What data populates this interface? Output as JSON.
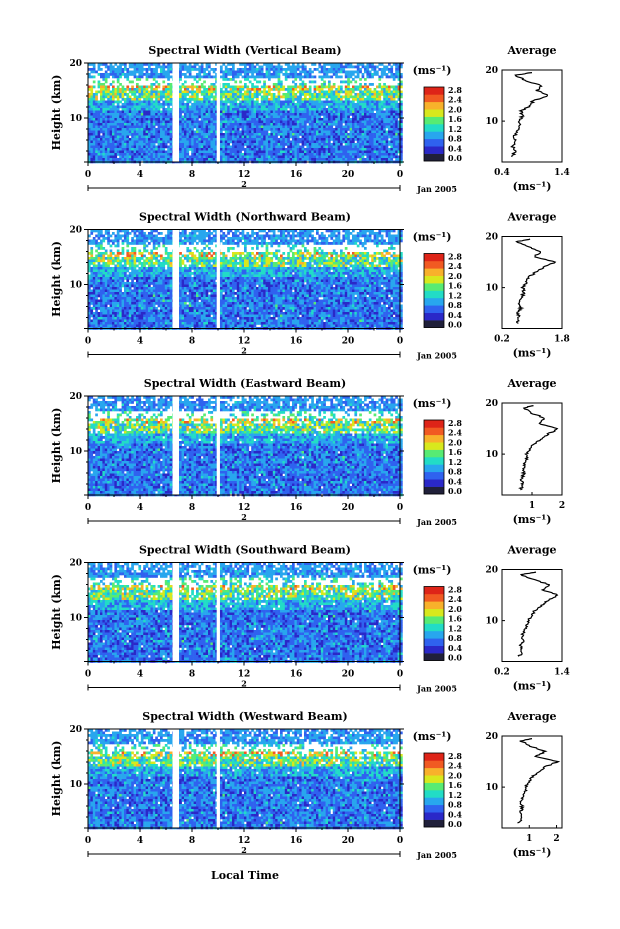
{
  "figure": {
    "xlabel_bottom": "Local Time",
    "ylabel": "Height (km)",
    "date_label": "Jan 2005",
    "day_label": "2",
    "unit_label": "(ms⁻¹)",
    "average_title": "Average",
    "average_xlabel": "(ms⁻¹)"
  },
  "colorbar": {
    "ticks": [
      "2.8",
      "2.4",
      "2.0",
      "1.6",
      "1.2",
      "0.8",
      "0.4",
      "0.0"
    ],
    "colors": [
      "#20203a",
      "#2a28c8",
      "#2f62ef",
      "#28a6ee",
      "#22dcc6",
      "#57eb73",
      "#d8e81d",
      "#f8b12b",
      "#f15a22",
      "#de2418"
    ]
  },
  "chart_data": [
    {
      "type": "heatmap",
      "title": "Spectral Width (Vertical Beam)",
      "xlabel": "Local Time",
      "ylabel": "Height (km)",
      "xlim": [
        0,
        24
      ],
      "ylim": [
        2,
        20
      ],
      "x_ticks": [
        "0",
        "4",
        "8",
        "12",
        "16",
        "20",
        "0"
      ],
      "y_ticks": [
        "10",
        "20"
      ],
      "data_gaps_hours": [
        [
          6.5,
          7.0
        ],
        [
          9.9,
          10.15
        ]
      ],
      "colorbar_range": [
        0.0,
        2.8
      ],
      "average_profile": {
        "xlim": [
          0.4,
          1.4
        ],
        "x_ticks": [
          "0.4",
          "1.4"
        ],
        "y_ticks": [
          "10",
          "20"
        ],
        "heights": [
          3,
          4,
          5,
          6,
          7,
          8,
          9,
          10,
          11,
          12,
          13,
          14,
          15,
          16,
          17,
          18,
          19,
          19.5
        ],
        "values": [
          0.56,
          0.62,
          0.58,
          0.64,
          0.6,
          0.66,
          0.7,
          0.68,
          0.74,
          0.72,
          0.86,
          0.92,
          1.18,
          0.98,
          1.05,
          0.78,
          0.62,
          0.9
        ]
      }
    },
    {
      "type": "heatmap",
      "title": "Spectral Width (Northward Beam)",
      "xlabel": "Local Time",
      "ylabel": "Height (km)",
      "xlim": [
        0,
        24
      ],
      "ylim": [
        2,
        20
      ],
      "x_ticks": [
        "0",
        "4",
        "8",
        "12",
        "16",
        "20",
        "0"
      ],
      "y_ticks": [
        "10",
        "20"
      ],
      "data_gaps_hours": [
        [
          6.5,
          7.0
        ],
        [
          9.9,
          10.15
        ]
      ],
      "colorbar_range": [
        0.0,
        2.8
      ],
      "average_profile": {
        "xlim": [
          0.2,
          1.8
        ],
        "x_ticks": [
          "0.2",
          "1.8"
        ],
        "y_ticks": [
          "10",
          "20"
        ],
        "heights": [
          3,
          4,
          5,
          6,
          7,
          8,
          9,
          10,
          11,
          12,
          13,
          14,
          15,
          16,
          17,
          18,
          19,
          19.5
        ],
        "values": [
          0.6,
          0.66,
          0.62,
          0.7,
          0.66,
          0.72,
          0.78,
          0.76,
          0.84,
          0.9,
          1.1,
          1.3,
          1.62,
          1.05,
          1.25,
          0.9,
          0.6,
          0.95
        ]
      }
    },
    {
      "type": "heatmap",
      "title": "Spectral Width (Eastward Beam)",
      "xlabel": "Local Time",
      "ylabel": "Height (km)",
      "xlim": [
        0,
        24
      ],
      "ylim": [
        2,
        20
      ],
      "x_ticks": [
        "0",
        "4",
        "8",
        "12",
        "16",
        "20",
        "0"
      ],
      "y_ticks": [
        "10",
        "20"
      ],
      "data_gaps_hours": [
        [
          6.5,
          7.0
        ],
        [
          9.9,
          10.15
        ]
      ],
      "colorbar_range": [
        0.0,
        2.8
      ],
      "average_profile": {
        "xlim": [
          0,
          2
        ],
        "x_ticks": [
          "1",
          "2"
        ],
        "y_ticks": [
          "10",
          "20"
        ],
        "heights": [
          3,
          4,
          5,
          6,
          7,
          8,
          9,
          10,
          11,
          12,
          13,
          14,
          15,
          16,
          17,
          18,
          19,
          19.5
        ],
        "values": [
          0.62,
          0.7,
          0.66,
          0.72,
          0.7,
          0.76,
          0.84,
          0.82,
          0.96,
          1.06,
          1.3,
          1.55,
          1.88,
          1.2,
          1.45,
          1.0,
          0.72,
          1.05
        ]
      }
    },
    {
      "type": "heatmap",
      "title": "Spectral Width (Southward Beam)",
      "xlabel": "Local Time",
      "ylabel": "Height (km)",
      "xlim": [
        0,
        24
      ],
      "ylim": [
        2,
        20
      ],
      "x_ticks": [
        "0",
        "4",
        "8",
        "12",
        "16",
        "20",
        "0"
      ],
      "y_ticks": [
        "10",
        "20"
      ],
      "data_gaps_hours": [
        [
          6.5,
          7.0
        ],
        [
          9.9,
          10.15
        ]
      ],
      "colorbar_range": [
        0.0,
        2.8
      ],
      "average_profile": {
        "xlim": [
          0.2,
          1.4
        ],
        "x_ticks": [
          "0.2",
          "1.4"
        ],
        "y_ticks": [
          "10",
          "20"
        ],
        "heights": [
          3,
          4,
          5,
          6,
          7,
          8,
          9,
          10,
          11,
          12,
          13,
          14,
          15,
          16,
          17,
          18,
          19,
          19.5
        ],
        "values": [
          0.55,
          0.6,
          0.57,
          0.62,
          0.6,
          0.66,
          0.7,
          0.72,
          0.8,
          0.86,
          1.0,
          1.12,
          1.32,
          1.02,
          1.15,
          0.86,
          0.58,
          0.88
        ]
      }
    },
    {
      "type": "heatmap",
      "title": "Spectral Width (Westward Beam)",
      "xlabel": "Local Time",
      "ylabel": "Height (km)",
      "xlim": [
        0,
        24
      ],
      "ylim": [
        2,
        20
      ],
      "x_ticks": [
        "0",
        "4",
        "8",
        "12",
        "16",
        "20",
        "0"
      ],
      "y_ticks": [
        "10",
        "20"
      ],
      "data_gaps_hours": [
        [
          6.5,
          7.0
        ],
        [
          9.9,
          10.15
        ]
      ],
      "colorbar_range": [
        0.0,
        2.8
      ],
      "average_profile": {
        "xlim": [
          0,
          2.2
        ],
        "x_ticks": [
          "1",
          "2"
        ],
        "y_ticks": [
          "10",
          "20"
        ],
        "heights": [
          3,
          4,
          5,
          6,
          7,
          8,
          9,
          10,
          11,
          12,
          13,
          14,
          15,
          16,
          17,
          18,
          19,
          19.5
        ],
        "values": [
          0.62,
          0.72,
          0.66,
          0.74,
          0.7,
          0.78,
          0.86,
          0.84,
          0.98,
          1.1,
          1.4,
          1.6,
          2.05,
          1.25,
          1.6,
          1.05,
          0.7,
          1.1
        ]
      }
    }
  ]
}
